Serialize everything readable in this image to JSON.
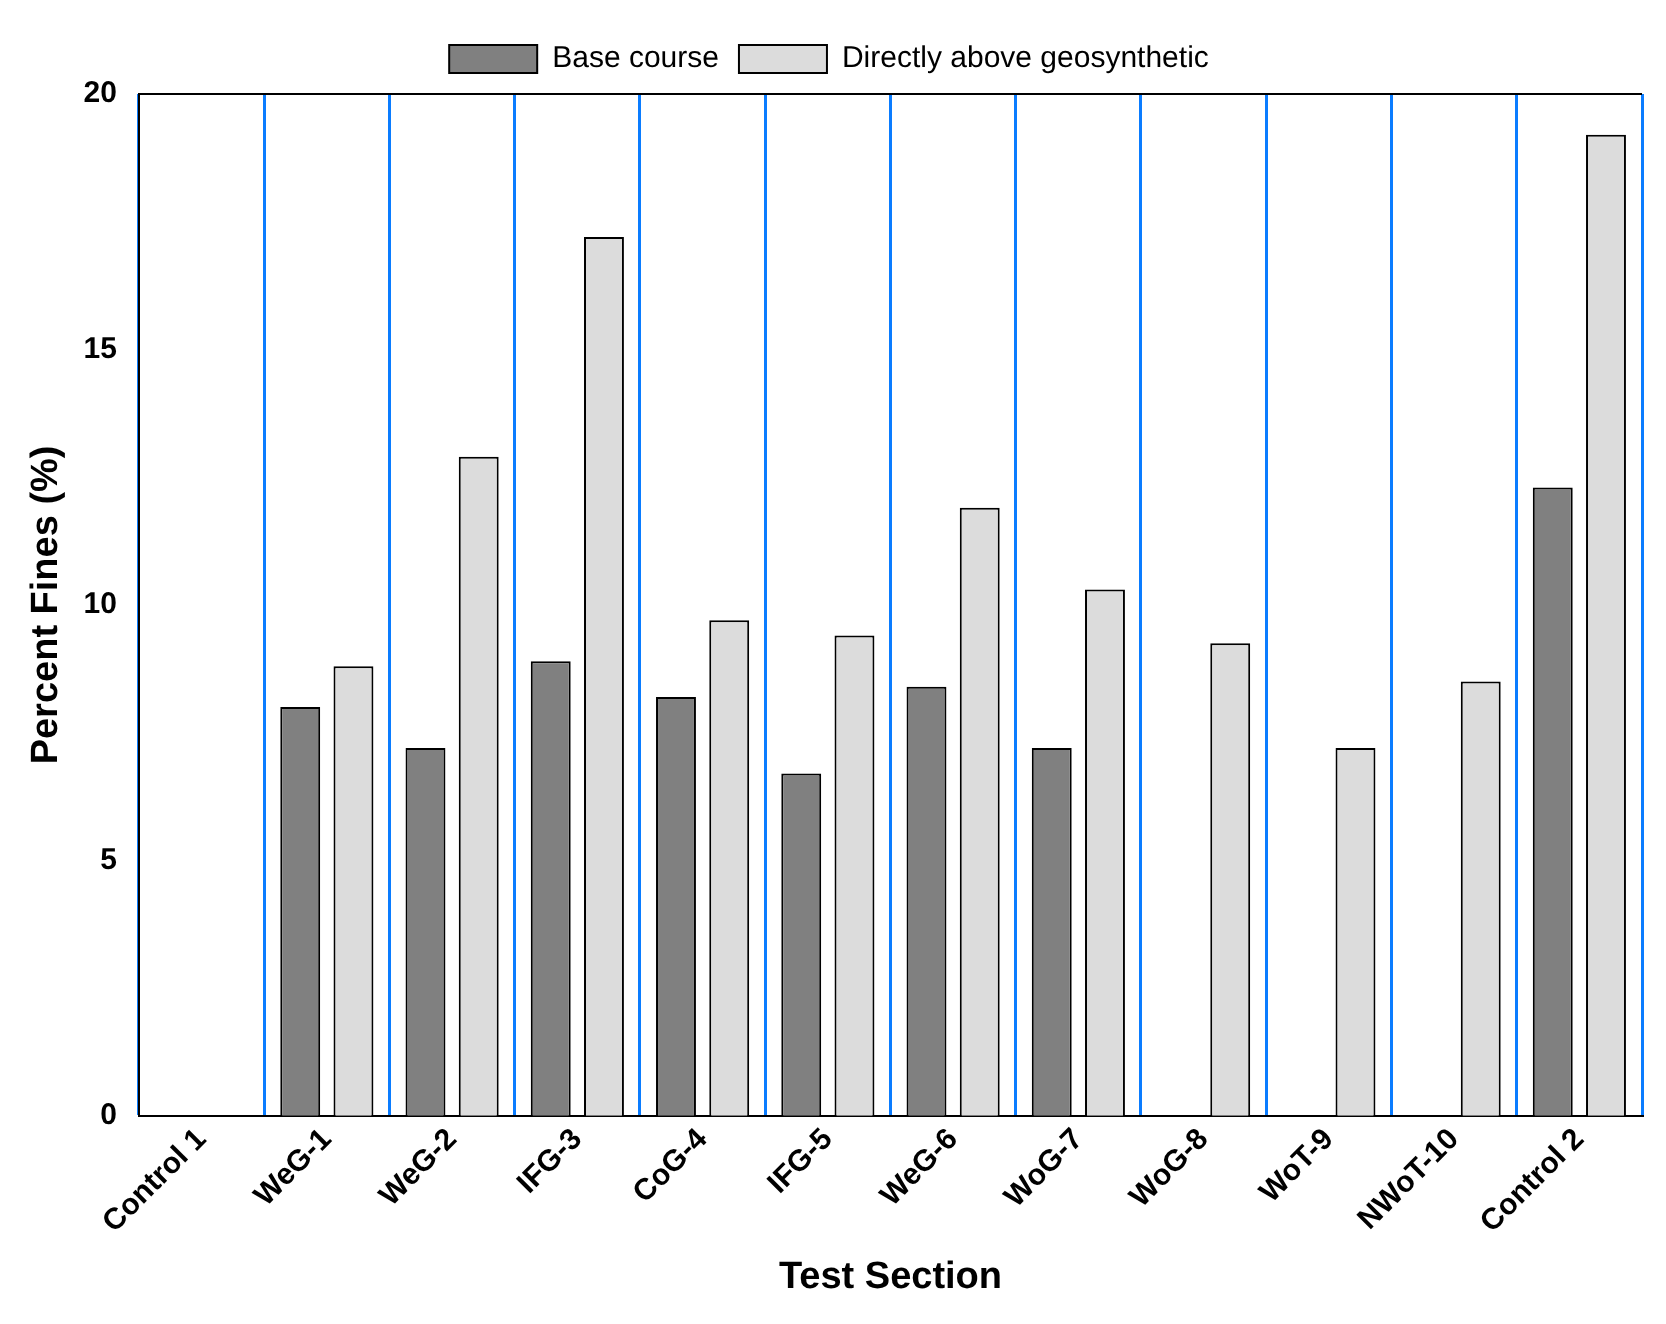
{
  "chart_data": {
    "type": "bar",
    "xlabel": "Test Section",
    "ylabel": "Percent Fines (%)",
    "categories": [
      "Control 1",
      "WeG-1",
      "WeG-2",
      "IFG-3",
      "CoG-4",
      "IFG-5",
      "WeG-6",
      "WoG-7",
      "WoG-8",
      "WoT-9",
      "NWoT-10",
      "Control 2"
    ],
    "series": [
      {
        "name": "Base course",
        "color": "#808080",
        "values": [
          null,
          8.0,
          7.2,
          8.9,
          8.2,
          6.7,
          8.4,
          7.2,
          null,
          null,
          null,
          12.3
        ]
      },
      {
        "name": "Directly above geosynthetic",
        "color": "#dcdcdc",
        "values": [
          null,
          8.8,
          12.9,
          17.2,
          9.7,
          9.4,
          11.9,
          10.3,
          9.25,
          7.2,
          8.5,
          19.2
        ]
      }
    ],
    "ylim": [
      0,
      20
    ],
    "yticks": [
      0,
      5,
      10,
      15,
      20
    ],
    "grid": "x",
    "legend": "top"
  }
}
